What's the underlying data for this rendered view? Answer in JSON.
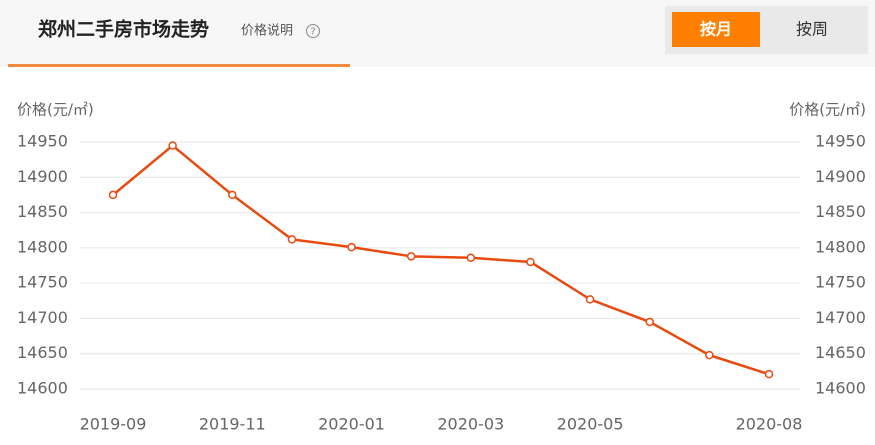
{
  "header": {
    "title": "郑州二手房市场走势",
    "info_label": "价格说明",
    "help_icon": "?",
    "tabs": [
      "按月",
      "按周"
    ],
    "active_tab": 0
  },
  "chart_data": {
    "type": "line",
    "ylabel": "价格(元/㎡)",
    "y2label": "价格(元/㎡)",
    "categories": [
      "2019-09",
      null,
      "2019-11",
      null,
      "2020-01",
      null,
      "2020-03",
      null,
      "2020-05",
      null,
      null,
      "2020-08"
    ],
    "values": [
      14875,
      14945,
      14875,
      14812,
      14801,
      14788,
      14786,
      14780,
      14727,
      14695,
      14648,
      14621
    ],
    "color": "#e84a10",
    "ylim": [
      14600,
      14950
    ],
    "yticks": [
      14600,
      14650,
      14700,
      14750,
      14800,
      14850,
      14900,
      14950
    ],
    "y2lim": [
      14600,
      14950
    ],
    "y2ticks": [
      14600,
      14650,
      14700,
      14750,
      14800,
      14850,
      14900,
      14950
    ],
    "grid": true,
    "markers": true
  }
}
